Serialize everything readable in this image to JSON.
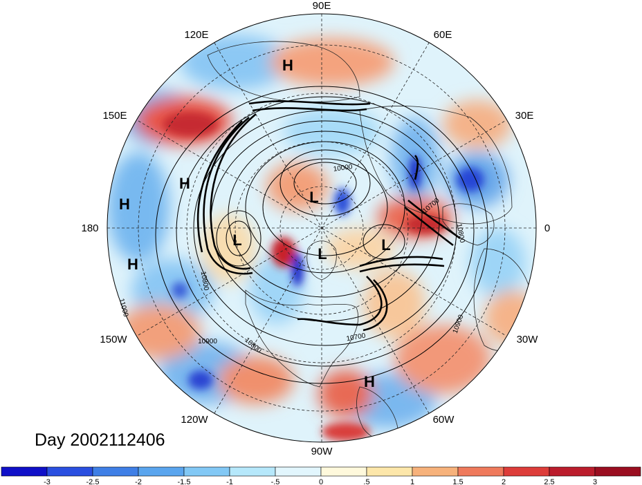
{
  "title": "Day 2002112406",
  "longitude_labels": {
    "top": "90E",
    "upper_left": "120E",
    "upper_right": "60E",
    "left_upper": "150E",
    "right_upper": "30E",
    "left": "180",
    "right": "0",
    "left_lower": "150W",
    "right_lower": "30W",
    "lower_left": "120W",
    "lower_right": "60W",
    "bottom": "90W"
  },
  "pressure_centers": [
    {
      "type": "H"
    },
    {
      "type": "H"
    },
    {
      "type": "H"
    },
    {
      "type": "H"
    },
    {
      "type": "H"
    },
    {
      "type": "L"
    },
    {
      "type": "L"
    },
    {
      "type": "L"
    },
    {
      "type": "L"
    }
  ],
  "contour_labels": [
    "10000",
    "10700",
    "10800",
    "10700",
    "10800",
    "10900",
    "10900",
    "10800",
    "11000"
  ],
  "colorbar": {
    "ticks": [
      "-3",
      "-2.5",
      "-2",
      "-1.5",
      "-1",
      "-.5",
      "0",
      ".5",
      "1",
      "1.5",
      "2",
      "2.5",
      "3"
    ],
    "colors": [
      "#1010c8",
      "#2a4fe0",
      "#3f7fe6",
      "#5aa5ee",
      "#82c8f5",
      "#b6e8fb",
      "#e2f6fd",
      "#fff9dc",
      "#fde7aa",
      "#f7b27b",
      "#ef7a5c",
      "#dd3d3a",
      "#bb1c2c",
      "#9a0e20"
    ]
  }
}
